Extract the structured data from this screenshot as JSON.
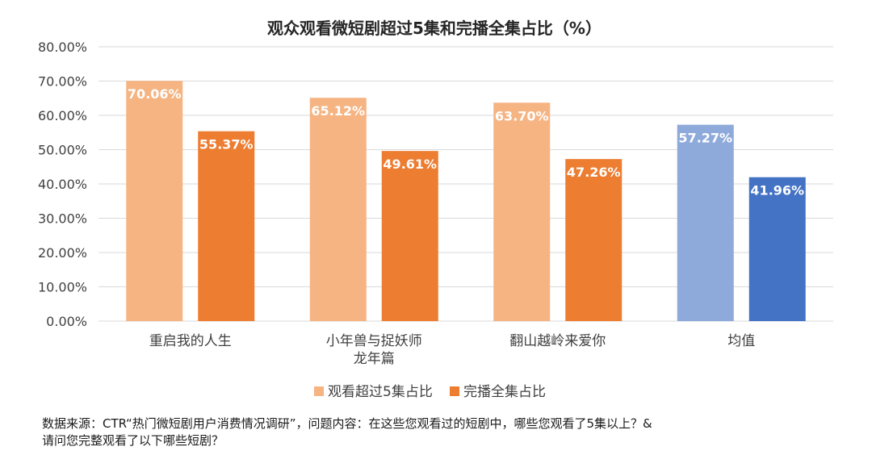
{
  "chart_data": {
    "type": "bar",
    "title": "观众观看微短剧超过5集和完播全集占比（%）",
    "categories": [
      "重启我的人生",
      "小年兽与捉妖师\n龙年篇",
      "翻山越岭来爱你",
      "均值"
    ],
    "series": [
      {
        "name": "观看超过5集占比",
        "values": [
          70.06,
          65.12,
          63.7,
          57.27
        ],
        "labels": [
          "70.06%",
          "65.12%",
          "63.70%",
          "57.27%"
        ],
        "colors": [
          "#F5B482",
          "#F5B482",
          "#F5B482",
          "#8EAADB"
        ]
      },
      {
        "name": "完播全集占比",
        "values": [
          55.37,
          49.61,
          47.26,
          41.96
        ],
        "labels": [
          "55.37%",
          "49.61%",
          "47.26%",
          "41.96%"
        ],
        "colors": [
          "#ED7D31",
          "#ED7D31",
          "#ED7D31",
          "#4472C4"
        ]
      }
    ],
    "ylim": [
      0,
      80
    ],
    "yticks": [
      0,
      10,
      20,
      30,
      40,
      50,
      60,
      70,
      80
    ],
    "ytick_labels": [
      "0.00%",
      "10.00%",
      "20.00%",
      "30.00%",
      "40.00%",
      "50.00%",
      "60.00%",
      "70.00%",
      "80.00%"
    ],
    "grid": true,
    "legend_position": "bottom",
    "legend_colors": [
      "#F5B482",
      "#ED7D31"
    ],
    "gridline_color": "#D9D9D9"
  },
  "footer": {
    "line1": "数据来源：CTR“热门微短剧用户消费情况调研”，问题内容：在这些您观看过的短剧中，哪些您观看了5集以上？&",
    "line2": "请问您完整观看了以下哪些短剧？"
  }
}
